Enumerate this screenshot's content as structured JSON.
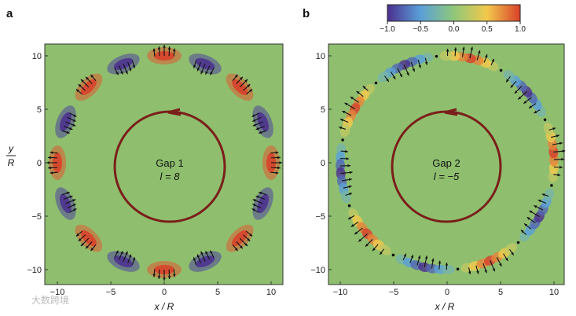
{
  "panel_a_label": "a",
  "panel_b_label": "b",
  "colorbar": {
    "ticks": [
      "−1.0",
      "−0.5",
      "0.0",
      "0.5",
      "1.0"
    ],
    "colors": [
      "#5b3fa0",
      "#5aa0d8",
      "#8fc77a",
      "#f2c94c",
      "#d9402a"
    ]
  },
  "y_axis_label_top": "y",
  "y_axis_label_bottom": "R",
  "x_axis_label": "x / R",
  "y_ticks": [
    "10",
    "5",
    "0",
    "−5",
    "−10"
  ],
  "x_ticks": [
    "−10",
    "−5",
    "0",
    "5",
    "10"
  ],
  "panel_a": {
    "gap": "Gap 1",
    "mode": "l = 8"
  },
  "panel_b": {
    "gap": "Gap 2",
    "mode": "l = −5"
  },
  "watermark": "大数跨境",
  "colors": {
    "background_field": "#8fbf6e",
    "loop": "#7a1f1a",
    "arrow": "#111111"
  }
}
